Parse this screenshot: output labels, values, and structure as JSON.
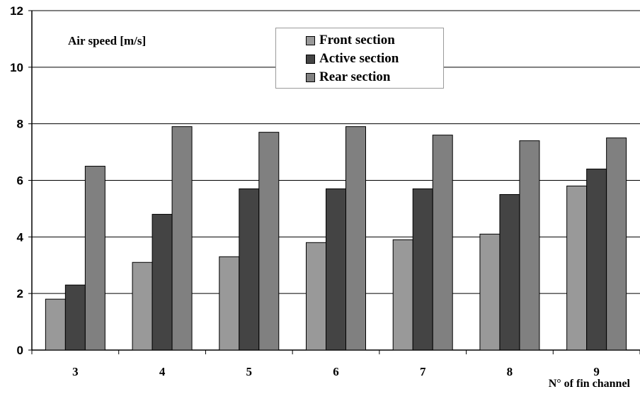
{
  "chart_data": {
    "type": "bar",
    "ylabel": "Air speed [m/s]",
    "xlabel": "N° of fin channel",
    "categories": [
      "3",
      "4",
      "5",
      "6",
      "7",
      "8",
      "9"
    ],
    "series": [
      {
        "name": "Front section",
        "color": "#999999",
        "values": [
          1.8,
          3.1,
          3.3,
          3.8,
          3.9,
          4.1,
          5.8
        ]
      },
      {
        "name": "Active section",
        "color": "#444444",
        "values": [
          2.3,
          4.8,
          5.7,
          5.7,
          5.7,
          5.5,
          6.4
        ]
      },
      {
        "name": "Rear section",
        "color": "#808080",
        "values": [
          6.5,
          7.9,
          7.7,
          7.9,
          7.6,
          7.4,
          7.5
        ]
      }
    ],
    "yticks": [
      "0",
      "2",
      "4",
      "6",
      "8",
      "10",
      "12"
    ],
    "ylim": [
      0,
      12
    ],
    "grid": true,
    "legend_position": "top-center"
  }
}
